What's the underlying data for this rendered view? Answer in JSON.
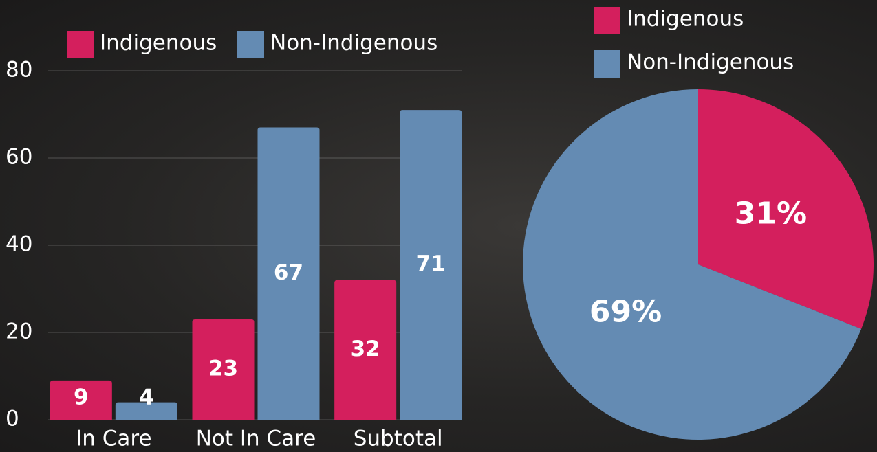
{
  "chart_data": [
    {
      "type": "bar",
      "categories": [
        "In Care",
        "Not In Care",
        "Subtotal"
      ],
      "series": [
        {
          "name": "Indigenous",
          "color": "#d41f5d",
          "values": [
            9,
            23,
            32
          ]
        },
        {
          "name": "Non-Indigenous",
          "color": "#648bb3",
          "values": [
            4,
            67,
            71
          ]
        }
      ],
      "ylim": [
        0,
        80
      ],
      "yticks": [
        0,
        20,
        40,
        60,
        80
      ],
      "grid": true
    },
    {
      "type": "pie",
      "categories": [
        "Indigenous",
        "Non-Indigenous"
      ],
      "values": [
        31,
        69
      ],
      "value_labels": [
        "31%",
        "69%"
      ],
      "colors": [
        "#d41f5d",
        "#648bb3"
      ]
    }
  ]
}
